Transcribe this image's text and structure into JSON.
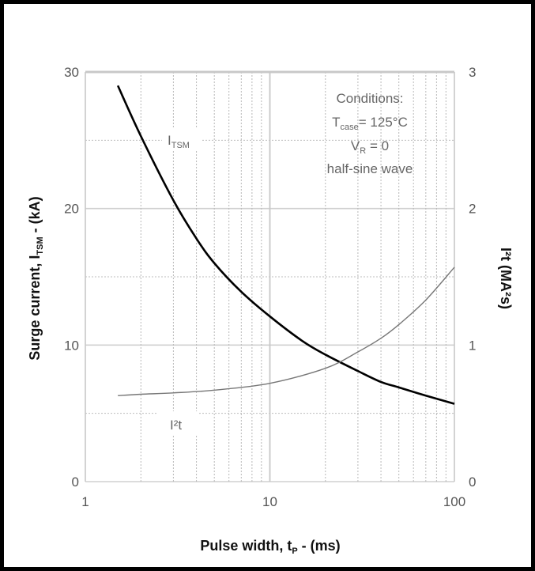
{
  "chart_data": {
    "type": "line",
    "x_scale": "log",
    "xlim": [
      1,
      100
    ],
    "ylim_left": [
      0,
      30
    ],
    "ylim_right": [
      0,
      3
    ],
    "x_ticks": [
      "1",
      "10",
      "100"
    ],
    "y_left_ticks": [
      "0",
      "10",
      "20",
      "30"
    ],
    "y_right_ticks": [
      "0",
      "1",
      "2",
      "3"
    ],
    "xlabel": "Pulse width, tp - (ms)",
    "ylabel_left": "Surge current, ITSM - (kA)",
    "ylabel_right": "I²t (MA²s)",
    "grid": true,
    "annotation": [
      "Conditions:",
      "Tcase= 125°C",
      "VR = 0",
      "half-sine wave"
    ],
    "series": [
      {
        "name": "ITSM",
        "axis": "left",
        "color": "#000000",
        "x": [
          1.5,
          2,
          3,
          4,
          5,
          7,
          10,
          15,
          20,
          30,
          40,
          50,
          70,
          100
        ],
        "y": [
          29,
          25.3,
          20.6,
          17.8,
          16.0,
          13.9,
          12.1,
          10.3,
          9.3,
          8.1,
          7.3,
          6.9,
          6.3,
          5.7
        ]
      },
      {
        "name": "I²t",
        "axis": "right",
        "color": "#777777",
        "x": [
          1.5,
          2,
          3,
          5,
          10,
          20,
          30,
          40,
          50,
          70,
          100
        ],
        "y": [
          0.63,
          0.64,
          0.65,
          0.67,
          0.72,
          0.83,
          0.95,
          1.05,
          1.15,
          1.33,
          1.57
        ]
      }
    ],
    "series_labels": {
      "itsm": {
        "main": "I",
        "sub": "TSM"
      },
      "i2t": {
        "main": "I²t"
      }
    }
  }
}
